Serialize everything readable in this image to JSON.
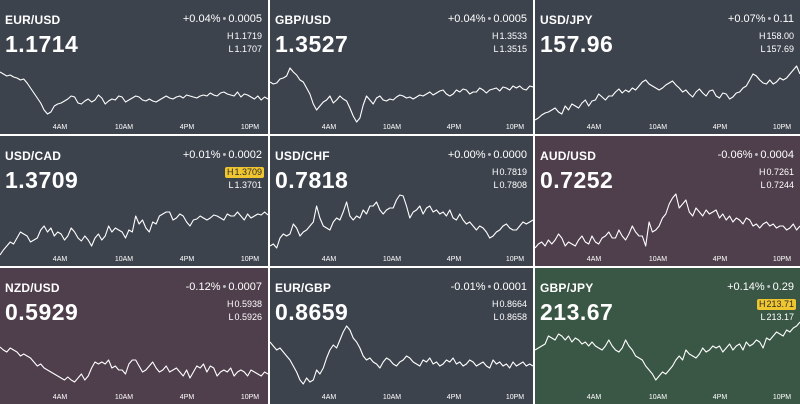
{
  "x_axis_labels": [
    "4AM",
    "10AM",
    "4PM",
    "10PM"
  ],
  "colors": {
    "neutral": "#3d434d",
    "negative": "#4f3e4b",
    "positive": "#3a5746",
    "line": "#ffffff",
    "highlight_badge": "#f0c630"
  },
  "tiles": [
    {
      "pair": "EUR/USD",
      "change_pct": "+0.04%",
      "change_abs": "0.0005",
      "price": "1.1714",
      "high": "1.1719",
      "low": "1.1707",
      "trend": "neutral",
      "high_flag": false,
      "series": [
        72,
        74,
        76,
        75,
        77,
        78,
        80,
        79,
        83,
        88,
        93,
        98,
        103,
        110,
        114,
        112,
        106,
        104,
        103,
        101,
        99,
        96,
        97,
        103,
        104,
        101,
        99,
        102,
        100,
        95,
        98,
        104,
        101,
        99,
        100,
        96,
        97,
        102,
        100,
        98,
        96,
        97,
        100,
        101,
        99,
        101,
        102,
        100,
        98,
        96,
        98,
        99,
        97,
        96,
        98,
        95,
        96,
        97,
        98,
        96,
        95,
        96,
        93,
        95,
        96,
        93,
        92,
        94,
        95,
        96,
        92,
        97,
        94,
        95,
        97,
        99,
        96,
        100,
        97,
        99
      ]
    },
    {
      "pair": "GBP/USD",
      "change_pct": "+0.04%",
      "change_abs": "0.0005",
      "price": "1.3527",
      "high": "1.3533",
      "low": "1.3515",
      "trend": "neutral",
      "high_flag": false,
      "series": [
        82,
        84,
        83,
        79,
        78,
        76,
        68,
        72,
        75,
        80,
        82,
        88,
        94,
        104,
        110,
        106,
        102,
        100,
        96,
        103,
        100,
        96,
        99,
        101,
        108,
        116,
        122,
        118,
        105,
        96,
        100,
        104,
        98,
        96,
        100,
        101,
        99,
        100,
        97,
        95,
        96,
        98,
        97,
        99,
        97,
        95,
        96,
        94,
        92,
        95,
        93,
        91,
        90,
        94,
        96,
        94,
        90,
        92,
        89,
        90,
        94,
        92,
        92,
        88,
        90,
        93,
        90,
        89,
        88,
        91,
        87,
        88,
        90,
        86,
        88,
        86,
        89,
        90,
        86,
        87
      ]
    },
    {
      "pair": "USD/JPY",
      "change_pct": "+0.07%",
      "change_abs": "0.11",
      "price": "157.96",
      "high": "158.00",
      "low": "157.69",
      "trend": "neutral",
      "high_flag": false,
      "series": [
        120,
        118,
        115,
        113,
        112,
        110,
        108,
        112,
        114,
        106,
        110,
        104,
        106,
        108,
        103,
        100,
        106,
        101,
        100,
        94,
        97,
        100,
        96,
        96,
        92,
        89,
        93,
        90,
        92,
        88,
        90,
        86,
        82,
        80,
        84,
        86,
        88,
        90,
        88,
        85,
        83,
        81,
        85,
        88,
        92,
        90,
        94,
        97,
        92,
        89,
        93,
        96,
        91,
        90,
        96,
        98,
        93,
        94,
        99,
        97,
        93,
        92,
        88,
        86,
        80,
        74,
        76,
        80,
        83,
        84,
        80,
        84,
        82,
        78,
        80,
        78,
        74,
        70,
        66,
        74
      ]
    },
    {
      "pair": "USD/CAD",
      "change_pct": "+0.01%",
      "change_abs": "0.0002",
      "price": "1.3709",
      "high": "1.3709",
      "low": "1.3701",
      "trend": "neutral",
      "high_flag": true,
      "series": [
        255,
        250,
        246,
        242,
        244,
        238,
        232,
        234,
        236,
        242,
        240,
        238,
        230,
        226,
        232,
        228,
        236,
        232,
        234,
        240,
        236,
        228,
        232,
        238,
        241,
        236,
        240,
        246,
        238,
        234,
        240,
        236,
        226,
        232,
        228,
        230,
        232,
        238,
        230,
        232,
        216,
        224,
        220,
        228,
        232,
        222,
        224,
        216,
        214,
        212,
        212,
        220,
        218,
        214,
        216,
        222,
        226,
        220,
        219,
        216,
        218,
        220,
        218,
        215,
        216,
        218,
        220,
        214,
        216,
        216,
        212,
        216,
        220,
        214,
        218,
        216,
        214,
        215,
        212,
        215
      ]
    },
    {
      "pair": "USD/CHF",
      "change_pct": "+0.00%",
      "change_abs": "0.0000",
      "price": "0.7818",
      "high": "0.7819",
      "low": "0.7808",
      "trend": "neutral",
      "high_flag": false,
      "series": [
        246,
        244,
        248,
        238,
        234,
        236,
        234,
        224,
        228,
        236,
        232,
        230,
        226,
        222,
        206,
        218,
        226,
        228,
        230,
        222,
        218,
        220,
        212,
        202,
        216,
        220,
        216,
        218,
        210,
        214,
        206,
        206,
        202,
        210,
        214,
        210,
        208,
        208,
        200,
        195,
        196,
        206,
        218,
        212,
        210,
        206,
        214,
        208,
        206,
        212,
        210,
        214,
        212,
        216,
        210,
        218,
        220,
        214,
        220,
        224,
        222,
        226,
        230,
        226,
        228,
        232,
        238,
        236,
        232,
        230,
        226,
        224,
        228,
        230,
        230,
        226,
        222,
        224,
        222,
        220
      ]
    },
    {
      "pair": "AUD/USD",
      "change_pct": "-0.06%",
      "change_abs": "0.0004",
      "price": "0.7252",
      "high": "0.7261",
      "low": "0.7244",
      "trend": "negative",
      "high_flag": false,
      "series": [
        248,
        244,
        242,
        246,
        240,
        244,
        240,
        234,
        238,
        246,
        242,
        244,
        246,
        240,
        236,
        242,
        244,
        236,
        242,
        244,
        238,
        236,
        232,
        238,
        238,
        230,
        236,
        240,
        234,
        226,
        232,
        236,
        236,
        246,
        222,
        232,
        230,
        226,
        218,
        214,
        204,
        198,
        194,
        208,
        204,
        200,
        212,
        216,
        208,
        212,
        216,
        210,
        214,
        212,
        210,
        218,
        214,
        220,
        216,
        222,
        218,
        220,
        224,
        218,
        220,
        226,
        224,
        228,
        224,
        222,
        226,
        224,
        228,
        226,
        226,
        230,
        228,
        224,
        230,
        226
      ]
    },
    {
      "pair": "NZD/USD",
      "change_pct": "-0.12%",
      "change_abs": "0.0007",
      "price": "0.5929",
      "high": "0.5938",
      "low": "0.5926",
      "trend": "negative",
      "high_flag": false,
      "series": [
        347,
        350,
        352,
        348,
        350,
        352,
        356,
        354,
        356,
        358,
        362,
        366,
        364,
        368,
        370,
        372,
        374,
        376,
        378,
        380,
        377,
        380,
        382,
        378,
        374,
        380,
        376,
        368,
        362,
        364,
        362,
        364,
        360,
        368,
        366,
        370,
        370,
        374,
        364,
        360,
        360,
        366,
        372,
        370,
        366,
        362,
        368,
        372,
        370,
        366,
        372,
        370,
        368,
        372,
        376,
        370,
        378,
        372,
        366,
        368,
        364,
        372,
        366,
        368,
        376,
        372,
        370,
        372,
        368,
        376,
        372,
        370,
        372,
        376,
        370,
        372,
        374,
        376,
        372,
        374
      ]
    },
    {
      "pair": "EUR/GBP",
      "change_pct": "-0.01%",
      "change_abs": "0.0001",
      "price": "0.8659",
      "high": "0.8664",
      "low": "0.8658",
      "trend": "neutral",
      "high_flag": false,
      "series": [
        342,
        346,
        350,
        348,
        352,
        356,
        360,
        366,
        372,
        380,
        384,
        378,
        382,
        380,
        370,
        374,
        368,
        358,
        350,
        345,
        348,
        340,
        332,
        326,
        330,
        338,
        342,
        348,
        356,
        360,
        358,
        362,
        364,
        368,
        362,
        358,
        360,
        364,
        366,
        362,
        360,
        356,
        358,
        362,
        364,
        366,
        360,
        362,
        358,
        364,
        362,
        366,
        364,
        360,
        362,
        358,
        364,
        362,
        366,
        364,
        360,
        362,
        366,
        364,
        362,
        366,
        368,
        360,
        364,
        362,
        366,
        364,
        368,
        362,
        366,
        364,
        362,
        366,
        364,
        366
      ]
    },
    {
      "pair": "GBP/JPY",
      "change_pct": "+0.14%",
      "change_abs": "0.29",
      "price": "213.67",
      "high": "213.71",
      "low": "213.17",
      "trend": "positive",
      "high_flag": true,
      "series": [
        350,
        348,
        346,
        344,
        336,
        338,
        340,
        334,
        336,
        340,
        336,
        342,
        338,
        340,
        344,
        342,
        346,
        342,
        346,
        348,
        350,
        346,
        340,
        346,
        350,
        352,
        348,
        340,
        346,
        350,
        356,
        358,
        360,
        366,
        370,
        374,
        380,
        376,
        372,
        374,
        370,
        366,
        360,
        356,
        360,
        350,
        354,
        356,
        358,
        354,
        348,
        352,
        350,
        346,
        348,
        346,
        352,
        348,
        344,
        350,
        346,
        344,
        350,
        342,
        346,
        344,
        340,
        342,
        348,
        338,
        340,
        336,
        332,
        334,
        336,
        330,
        332,
        328,
        326,
        322
      ]
    }
  ]
}
